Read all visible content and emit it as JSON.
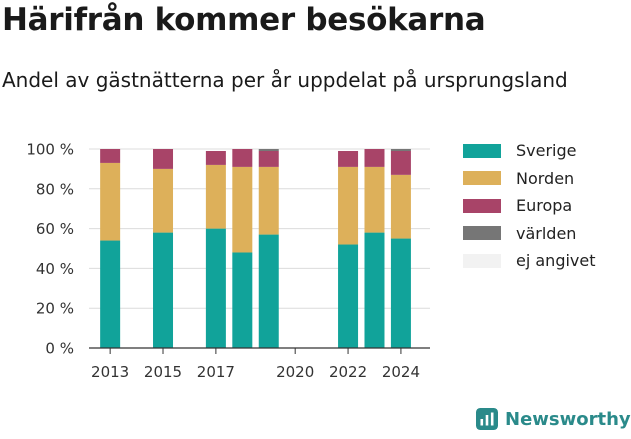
{
  "header": {
    "title": "Härifrån kommer besökarna",
    "subtitle": "Andel av gästnätterna per år uppdelat på ursprungsland"
  },
  "brand": {
    "name": "Newsworthy",
    "icon": "newsworthy-logo-icon",
    "color": "#2a8a8a"
  },
  "legend_items": [
    {
      "label": "Sverige",
      "color": "#11a39a"
    },
    {
      "label": "Norden",
      "color": "#ddb05a"
    },
    {
      "label": "Europa",
      "color": "#a84468"
    },
    {
      "label": "världen",
      "color": "#767676"
    },
    {
      "label": "ej angivet",
      "color": "#f2f2f2"
    }
  ],
  "chart_data": {
    "type": "bar",
    "stacked": true,
    "x_range": [
      2012.2,
      2025.1
    ],
    "x_ticks": [
      2013,
      2015,
      2017,
      2020,
      2022,
      2024
    ],
    "y_ticks": [
      0,
      20,
      40,
      60,
      80,
      100
    ],
    "y_tick_labels": [
      "0 %",
      "20 %",
      "40 %",
      "60 %",
      "80 %",
      "100 %"
    ],
    "ylim": [
      0,
      100
    ],
    "unit": "%",
    "grid": true,
    "legend_position": "right",
    "categories": [
      2013,
      2015,
      2017,
      2018,
      2019,
      2022,
      2023,
      2024
    ],
    "series": [
      {
        "name": "Sverige",
        "color": "#11a39a",
        "values": [
          54,
          58,
          60,
          48,
          57,
          52,
          58,
          55
        ]
      },
      {
        "name": "Norden",
        "color": "#ddb05a",
        "values": [
          39,
          32,
          32,
          43,
          34,
          39,
          33,
          32
        ]
      },
      {
        "name": "Europa",
        "color": "#a84468",
        "values": [
          7,
          10,
          7,
          9,
          8,
          8,
          9,
          12
        ]
      },
      {
        "name": "världen",
        "color": "#767676",
        "values": [
          0,
          0,
          0,
          0,
          1,
          0,
          0,
          1
        ]
      },
      {
        "name": "ej angivet",
        "color": "#f2f2f2",
        "values": [
          0,
          0,
          0,
          0,
          0,
          0,
          0,
          0
        ]
      }
    ]
  }
}
